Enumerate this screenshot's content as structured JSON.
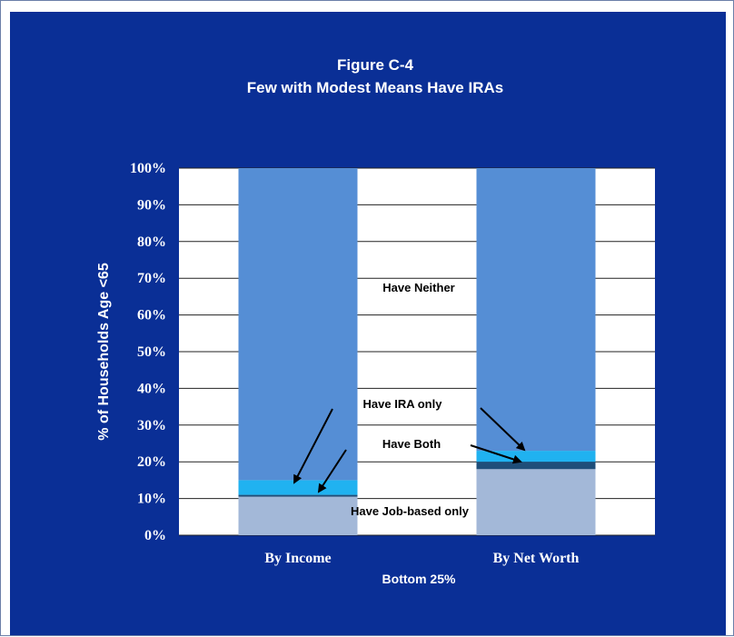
{
  "chart_data": {
    "type": "bar",
    "stacked": true,
    "title": "Figure C-4",
    "subtitle": "Few with Modest Means Have IRAs",
    "xlabel": "Bottom 25%",
    "ylabel": "% of Households Age <65",
    "categories": [
      "By Income",
      "By Net Worth"
    ],
    "ylim": [
      0,
      100
    ],
    "y_ticks": [
      "0%",
      "10%",
      "20%",
      "30%",
      "40%",
      "50%",
      "60%",
      "70%",
      "80%",
      "90%",
      "100%"
    ],
    "grid": true,
    "series": [
      {
        "name": "Have Job-based only",
        "values": [
          10.5,
          18
        ],
        "color": "#a3b8d8"
      },
      {
        "name": "Have Both",
        "values": [
          0.5,
          2
        ],
        "color": "#1f4e79"
      },
      {
        "name": "Have IRA only",
        "values": [
          4,
          3
        ],
        "color": "#20b2f0"
      },
      {
        "name": "Have Neither",
        "values": [
          85,
          77
        ],
        "color": "#558ed5"
      }
    ],
    "annotations": [
      "Have Neither",
      "Have IRA only",
      "Have Both",
      "Have Job-based only"
    ]
  },
  "colors": {
    "panel": "#0a2f96",
    "plot_background": "#ffffff",
    "gridline": "#222222"
  }
}
